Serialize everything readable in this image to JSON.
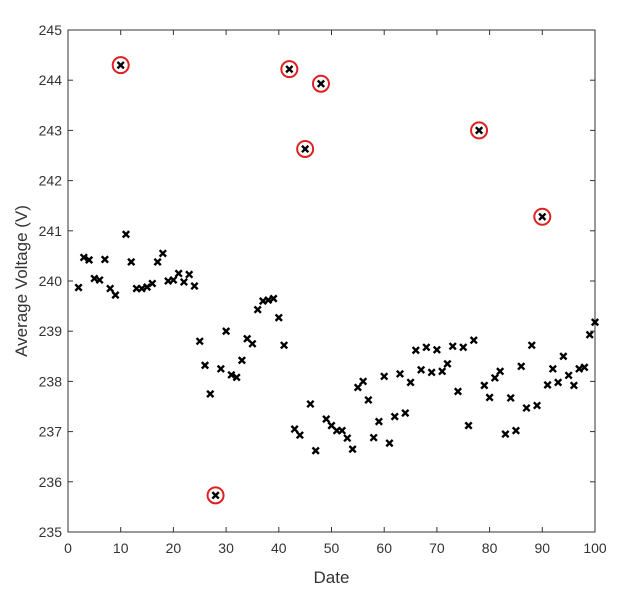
{
  "chart_data": {
    "type": "scatter",
    "xlabel": "Date",
    "ylabel": "Average Voltage (V)",
    "xlim": [
      0,
      100
    ],
    "ylim": [
      235,
      245
    ],
    "xticks": [
      0,
      10,
      20,
      30,
      40,
      50,
      60,
      70,
      80,
      90,
      100
    ],
    "yticks": [
      235,
      236,
      237,
      238,
      239,
      240,
      241,
      242,
      243,
      244,
      245
    ],
    "grid": false,
    "marker": "x",
    "colors": {
      "marker": "#000000",
      "outlier_ring": "#e02020",
      "axis": "#333333"
    },
    "series": [
      {
        "values": [
          [
            2,
            239.87
          ],
          [
            3,
            240.47
          ],
          [
            4,
            240.42
          ],
          [
            5,
            240.05
          ],
          [
            6,
            240.02
          ],
          [
            7,
            240.43
          ],
          [
            8,
            239.85
          ],
          [
            9,
            239.72
          ],
          [
            10,
            244.3
          ],
          [
            11,
            240.93
          ],
          [
            12,
            240.38
          ],
          [
            13,
            239.85
          ],
          [
            14,
            239.85
          ],
          [
            15,
            239.88
          ],
          [
            16,
            239.95
          ],
          [
            17,
            240.38
          ],
          [
            18,
            240.55
          ],
          [
            19,
            240.0
          ],
          [
            20,
            240.02
          ],
          [
            21,
            240.15
          ],
          [
            22,
            239.98
          ],
          [
            23,
            240.13
          ],
          [
            24,
            239.9
          ],
          [
            25,
            238.8
          ],
          [
            26,
            238.32
          ],
          [
            27,
            237.75
          ],
          [
            28,
            235.73
          ],
          [
            29,
            238.25
          ],
          [
            30,
            239.0
          ],
          [
            31,
            238.13
          ],
          [
            32,
            238.08
          ],
          [
            33,
            238.42
          ],
          [
            34,
            238.85
          ],
          [
            35,
            238.75
          ],
          [
            36,
            239.43
          ],
          [
            37,
            239.6
          ],
          [
            38,
            239.62
          ],
          [
            39,
            239.65
          ],
          [
            40,
            239.27
          ],
          [
            41,
            238.72
          ],
          [
            42,
            244.22
          ],
          [
            43,
            237.05
          ],
          [
            44,
            236.93
          ],
          [
            45,
            242.63
          ],
          [
            46,
            237.55
          ],
          [
            47,
            236.62
          ],
          [
            48,
            243.93
          ],
          [
            49,
            237.25
          ],
          [
            50,
            237.12
          ],
          [
            51,
            237.02
          ],
          [
            52,
            237.02
          ],
          [
            53,
            236.87
          ],
          [
            54,
            236.65
          ],
          [
            55,
            237.88
          ],
          [
            56,
            238.0
          ],
          [
            57,
            237.63
          ],
          [
            58,
            236.88
          ],
          [
            59,
            237.2
          ],
          [
            60,
            238.1
          ],
          [
            61,
            236.77
          ],
          [
            62,
            237.3
          ],
          [
            63,
            238.15
          ],
          [
            64,
            237.37
          ],
          [
            65,
            237.98
          ],
          [
            66,
            238.62
          ],
          [
            67,
            238.23
          ],
          [
            68,
            238.68
          ],
          [
            69,
            238.18
          ],
          [
            70,
            238.63
          ],
          [
            71,
            238.2
          ],
          [
            72,
            238.35
          ],
          [
            73,
            238.7
          ],
          [
            74,
            237.8
          ],
          [
            75,
            238.68
          ],
          [
            76,
            237.12
          ],
          [
            77,
            238.82
          ],
          [
            78,
            243.0
          ],
          [
            79,
            237.92
          ],
          [
            80,
            237.68
          ],
          [
            81,
            238.07
          ],
          [
            82,
            238.2
          ],
          [
            83,
            236.95
          ],
          [
            84,
            237.67
          ],
          [
            85,
            237.02
          ],
          [
            86,
            238.3
          ],
          [
            87,
            237.47
          ],
          [
            88,
            238.72
          ],
          [
            89,
            237.52
          ],
          [
            90,
            241.28
          ],
          [
            91,
            237.93
          ],
          [
            92,
            238.25
          ],
          [
            93,
            237.98
          ],
          [
            94,
            238.5
          ],
          [
            95,
            238.12
          ],
          [
            96,
            237.92
          ],
          [
            97,
            238.25
          ],
          [
            98,
            238.28
          ],
          [
            99,
            238.93
          ],
          [
            100,
            239.18
          ]
        ]
      }
    ],
    "outliers": [
      [
        10,
        244.3
      ],
      [
        28,
        235.73
      ],
      [
        42,
        244.22
      ],
      [
        45,
        242.63
      ],
      [
        48,
        243.93
      ],
      [
        78,
        243.0
      ],
      [
        90,
        241.28
      ]
    ]
  }
}
